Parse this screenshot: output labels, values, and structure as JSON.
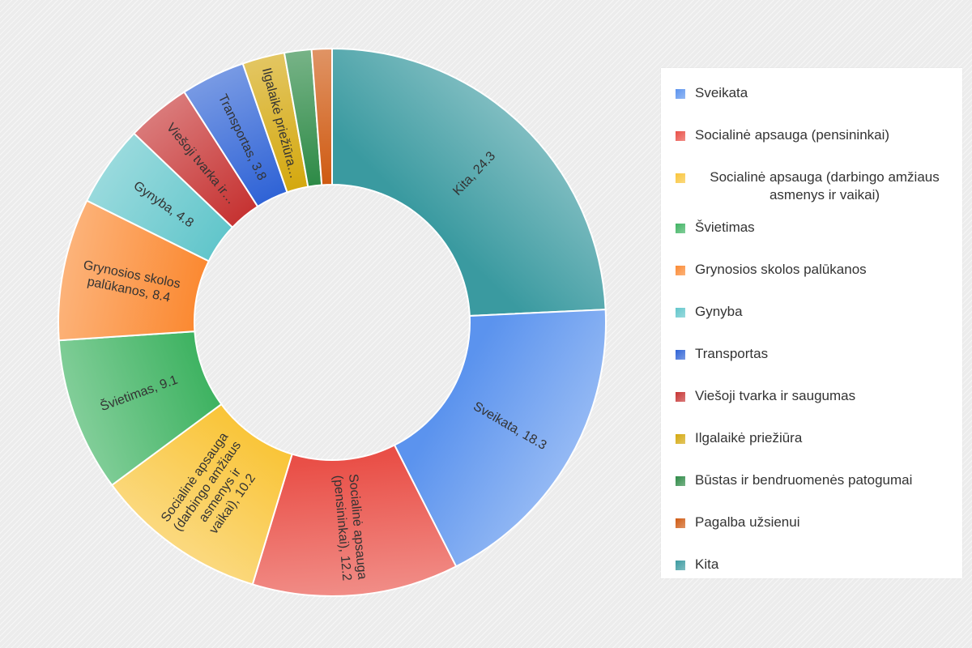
{
  "chart_data": {
    "type": "pie",
    "donut": true,
    "legend_position": "right",
    "slices": [
      {
        "label": "Kita, 24.3",
        "name": "Kita",
        "value": 24.3,
        "color": "#3a9aa0"
      },
      {
        "label": "Sveikata, 18.3",
        "name": "Sveikata",
        "value": 18.3,
        "color": "#5b93ee"
      },
      {
        "label": "Socialinė apsauga (pensininkai), 12.2",
        "name": "Socialinė apsauga (pensininkai)",
        "value": 12.2,
        "color": "#e94f47"
      },
      {
        "label": "Socialinė apsauga (darbingo amžiaus asmenys ir vaikai), 10.2",
        "name": "Socialinė apsauga (darbingo amžiaus asmenys ir vaikai)",
        "value": 10.2,
        "color": "#f9c53a"
      },
      {
        "label": "Švietimas, 9.1",
        "name": "Švietimas",
        "value": 9.1,
        "color": "#3fb362"
      },
      {
        "label": "Grynosios skolos palūkanos, 8.4",
        "name": "Grynosios skolos palūkanos",
        "value": 8.4,
        "color": "#fb8a33"
      },
      {
        "label": "Gynyba, 4.8",
        "name": "Gynyba",
        "value": 4.8,
        "color": "#62c6cb"
      },
      {
        "label": "Viešoji tvarka ir…",
        "name": "Viešoji tvarka ir saugumas",
        "value": 3.8,
        "color": "#c63332"
      },
      {
        "label": "Transportas, 3.8",
        "name": "Transportas",
        "value": 3.8,
        "color": "#2f63d6"
      },
      {
        "label": "Ilgalaikė priežiūra…",
        "name": "Ilgalaikė priežiūra",
        "value": 2.5,
        "color": "#d4a80e"
      },
      {
        "label": "",
        "name": "Būstas ir bendruomenės patogumai",
        "value": 1.6,
        "color": "#2d8a46"
      },
      {
        "label": "",
        "name": "Pagalba užsieniui",
        "value": 1.2,
        "color": "#cf5a12"
      }
    ],
    "legend": [
      {
        "text": "Sveikata",
        "color": "#5b93ee"
      },
      {
        "text": "Socialinė apsauga (pensininkai)",
        "color": "#e94f47"
      },
      {
        "text": "Socialinė apsauga (darbingo amžiaus asmenys ir vaikai)",
        "color": "#f9c53a"
      },
      {
        "text": "Švietimas",
        "color": "#3fb362"
      },
      {
        "text": "Grynosios skolos palūkanos",
        "color": "#fb8a33"
      },
      {
        "text": "Gynyba",
        "color": "#62c6cb"
      },
      {
        "text": "Transportas",
        "color": "#2f63d6"
      },
      {
        "text": "Viešoji tvarka ir saugumas",
        "color": "#c63332"
      },
      {
        "text": "Ilgalaikė priežiūra",
        "color": "#d4a80e"
      },
      {
        "text": "Būstas ir bendruomenės patogumai",
        "color": "#2d8a46"
      },
      {
        "text": "Pagalba užsienui",
        "color": "#cf5a12"
      },
      {
        "text": "Kita",
        "color": "#3a9aa0"
      }
    ]
  }
}
